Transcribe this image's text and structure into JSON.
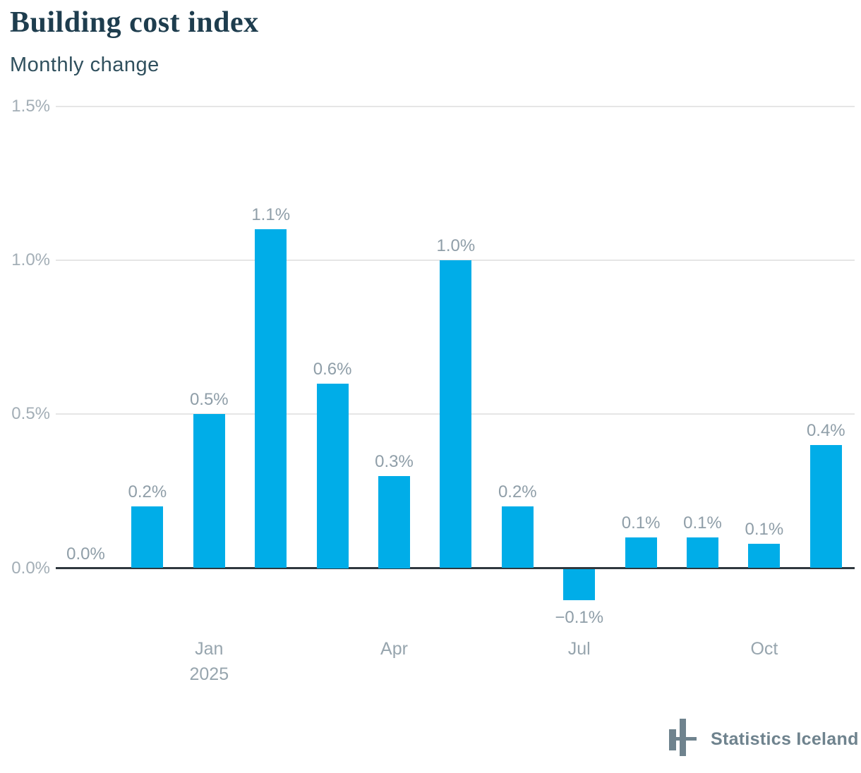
{
  "header": {
    "title": "Building cost index",
    "subtitle": "Monthly change"
  },
  "footer": {
    "brand": "Statistics Iceland"
  },
  "colors": {
    "bar": "#00ade8",
    "grid": "#e6e6e6",
    "zero_axis": "#2f383e",
    "title": "#1e3d4e",
    "subtitle": "#30505e",
    "y_axis_label": "#a3aeb6",
    "x_axis_label": "#97a5ae",
    "data_label": "#8f9ea8",
    "brand": "#6f838e"
  },
  "chart_data": {
    "type": "bar",
    "title": "Building cost index",
    "subtitle": "Monthly change",
    "unit": "percent",
    "values": [
      0,
      0.2,
      0.5,
      1.1,
      0.6,
      0.3,
      1.0,
      0.2,
      -0.1,
      0.1,
      0.1,
      0.08,
      0.4
    ],
    "data_labels": [
      "0.0%",
      "0.2%",
      "0.5%",
      "1.1%",
      "0.6%",
      "0.3%",
      "1.0%",
      "0.2%",
      "−0.1%",
      "0.1%",
      "0.1%",
      "0.1%",
      "0.4%"
    ],
    "x_ticks": [
      {
        "bar_index": 2,
        "label": "Jan",
        "year": "2025"
      },
      {
        "bar_index": 5,
        "label": "Apr"
      },
      {
        "bar_index": 8,
        "label": "Jul"
      },
      {
        "bar_index": 11,
        "label": "Oct"
      }
    ],
    "y_ticks": [
      {
        "value": 0.0,
        "label": "0.0%"
      },
      {
        "value": 0.5,
        "label": "0.5%"
      },
      {
        "value": 1.0,
        "label": "1.0%"
      },
      {
        "value": 1.5,
        "label": "1.5%"
      }
    ],
    "ylim": [
      -0.2,
      1.5
    ],
    "grid": "horizontal-only",
    "legend": "none",
    "credits": "Statistics Iceland"
  }
}
